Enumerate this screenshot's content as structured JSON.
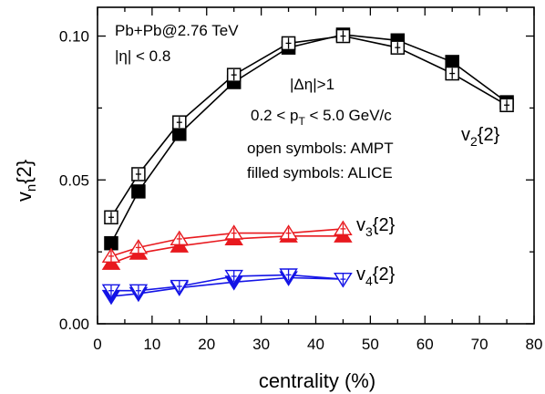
{
  "chart_data": {
    "type": "line",
    "xlabel": "centrality (%)",
    "ylabel": "v_n{2}",
    "xlim": [
      0,
      80
    ],
    "ylim": [
      0.0,
      0.11
    ],
    "x_ticks": [
      0,
      10,
      20,
      30,
      40,
      50,
      60,
      70,
      80
    ],
    "x_tick_labels": [
      "0",
      "10",
      "20",
      "30",
      "40",
      "50",
      "60",
      "70",
      "80"
    ],
    "y_ticks": [
      0.0,
      0.05,
      0.1
    ],
    "y_tick_labels": [
      "0.00",
      "0.05",
      "0.10"
    ],
    "grid": false,
    "annotations": {
      "system": "Pb+Pb@2.76 TeV",
      "eta_cut": "|η| < 0.8",
      "deta_cut": "|Δη|>1",
      "pt_pre": "0.2 < p",
      "pt_sub": "T",
      "pt_post": " < 5.0 GeV/c",
      "open_note": "open symbols: AMPT",
      "filled_note": "filled symbols: ALICE"
    },
    "series_labels": {
      "v2": {
        "main": "v",
        "sub": "2",
        "tail": "{2}",
        "color": "#000000"
      },
      "v3": {
        "main": "v",
        "sub": "3",
        "tail": "{2}",
        "color": "#000000"
      },
      "v4": {
        "main": "v",
        "sub": "4",
        "tail": "{2}",
        "color": "#000000"
      }
    },
    "series": [
      {
        "harmonic": "v2",
        "kind": "ALICE",
        "marker": "square",
        "filled": true,
        "color": "#000000",
        "x": [
          2.5,
          7.5,
          15,
          25,
          35,
          45,
          55,
          65,
          75
        ],
        "y": [
          0.028,
          0.046,
          0.066,
          0.084,
          0.096,
          0.1005,
          0.0985,
          0.091,
          0.077
        ]
      },
      {
        "harmonic": "v2",
        "kind": "AMPT",
        "marker": "square",
        "filled": false,
        "color": "#000000",
        "x": [
          2.5,
          7.5,
          15,
          25,
          35,
          45,
          55,
          65,
          75
        ],
        "y": [
          0.037,
          0.052,
          0.07,
          0.0865,
          0.0975,
          0.1,
          0.096,
          0.087,
          0.076
        ]
      },
      {
        "harmonic": "v3",
        "kind": "ALICE",
        "marker": "triangle-up",
        "filled": true,
        "color": "#e8191e",
        "x": [
          2.5,
          7.5,
          15,
          25,
          35,
          45
        ],
        "y": [
          0.021,
          0.0245,
          0.027,
          0.0295,
          0.0305,
          0.0305
        ]
      },
      {
        "harmonic": "v3",
        "kind": "AMPT",
        "marker": "triangle-up",
        "filled": false,
        "color": "#e8191e",
        "x": [
          2.5,
          7.5,
          15,
          25,
          35,
          45
        ],
        "y": [
          0.0235,
          0.0265,
          0.0295,
          0.0315,
          0.0315,
          0.033
        ]
      },
      {
        "harmonic": "v4",
        "kind": "ALICE",
        "marker": "triangle-down",
        "filled": true,
        "color": "#1414e6",
        "x": [
          2.5,
          7.5,
          15,
          25,
          35,
          45
        ],
        "y": [
          0.0095,
          0.0105,
          0.0125,
          0.0145,
          0.016,
          0.0155
        ]
      },
      {
        "harmonic": "v4",
        "kind": "AMPT",
        "marker": "triangle-down",
        "filled": false,
        "color": "#1414e6",
        "x": [
          2.5,
          7.5,
          15,
          25,
          35,
          45
        ],
        "y": [
          0.0115,
          0.0115,
          0.013,
          0.0165,
          0.017,
          0.0155
        ]
      }
    ]
  }
}
